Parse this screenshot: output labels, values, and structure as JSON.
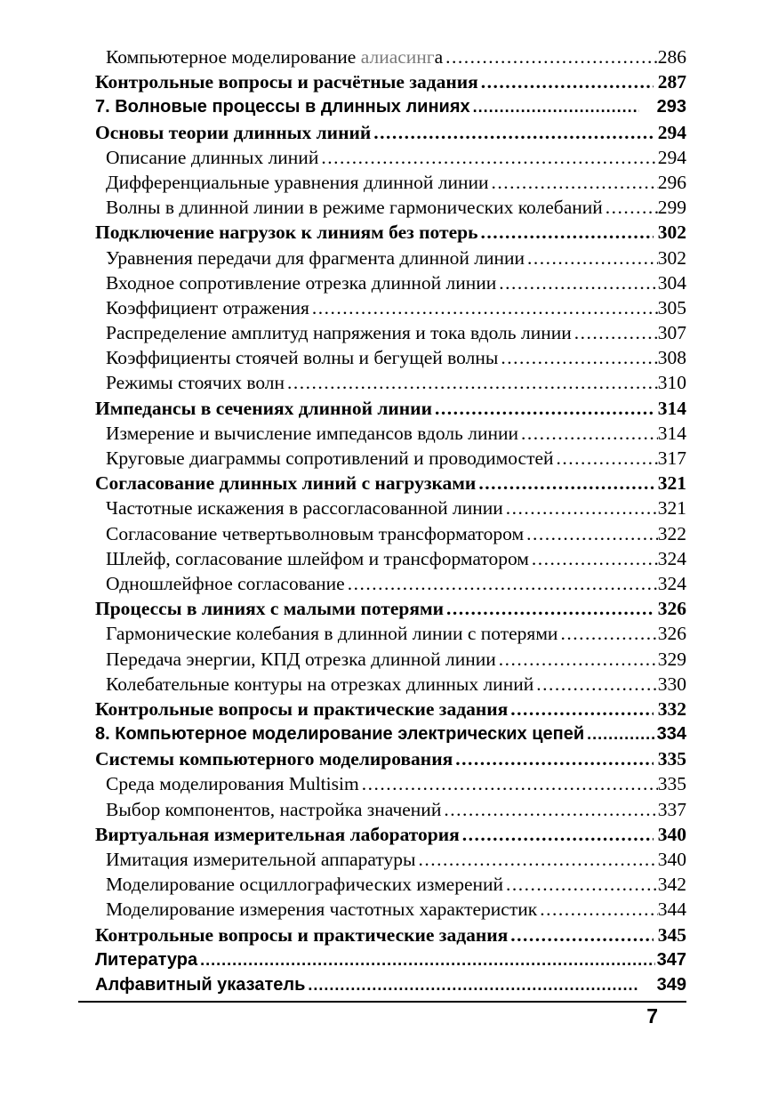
{
  "colors": {
    "text": "#000000",
    "muted_text": "#7b7b7b",
    "background": "#ffffff",
    "rule": "#000000"
  },
  "footer": {
    "page_number": "7"
  },
  "toc": {
    "entries": [
      {
        "style": "sub",
        "text": "Компьютерное моделирование ",
        "gray": "алиасинг",
        "post": "а",
        "page": "286"
      },
      {
        "style": "section",
        "text": "Контрольные вопросы и расчётные задания",
        "page": "287"
      },
      {
        "style": "chapter",
        "text": "7. Волновые процессы в длинных линиях",
        "page": "293",
        "gap": 20
      },
      {
        "style": "section",
        "text": "Основы теории длинных линий",
        "page": "294"
      },
      {
        "style": "sub",
        "text": "Описание длинных линий",
        "page": "294"
      },
      {
        "style": "sub",
        "text": "Дифференциальные уравнения длинной линии",
        "page": "296"
      },
      {
        "style": "sub",
        "text": "Волны в длинной линии в режиме гармонических колебаний",
        "page": "299"
      },
      {
        "style": "section",
        "text": "Подключение нагрузок к линиям без потерь",
        "page": "302"
      },
      {
        "style": "sub",
        "text": "Уравнения передачи для фрагмента длинной линии",
        "page": "302"
      },
      {
        "style": "sub",
        "text": "Входное сопротивление отрезка длинной линии",
        "page": "304"
      },
      {
        "style": "sub",
        "text": "Коэффициент отражения",
        "page": "305"
      },
      {
        "style": "sub",
        "text": "Распределение амплитуд напряжения и тока вдоль линии",
        "page": "307"
      },
      {
        "style": "sub",
        "text": "Коэффициенты стоячей волны и бегущей волны",
        "page": "308"
      },
      {
        "style": "sub",
        "text": "Режимы стоячих волн",
        "page": "310"
      },
      {
        "style": "section",
        "text": "Импедансы в сечениях длинной линии",
        "page": "314"
      },
      {
        "style": "sub",
        "text": "Измерение и вычисление импедансов вдоль линии",
        "page": "314"
      },
      {
        "style": "sub",
        "text": "Круговые диаграммы сопротивлений и проводимостей",
        "page": "317"
      },
      {
        "style": "section",
        "text": "Согласование длинных линий с нагрузками",
        "page": "321"
      },
      {
        "style": "sub",
        "text": "Частотные искажения в рассогласованной линии",
        "page": "321"
      },
      {
        "style": "sub",
        "text": "Согласование четвертьволновым трансформатором",
        "page": "322"
      },
      {
        "style": "sub",
        "text": "Шлейф, согласование шлейфом и трансформатором",
        "page": "324"
      },
      {
        "style": "sub",
        "text": "Одношлейфное согласование",
        "page": "324"
      },
      {
        "style": "section",
        "text": "Процессы в линиях с малыми потерями",
        "page": "326"
      },
      {
        "style": "sub",
        "text": "Гармонические колебания в длинной линии с потерями",
        "page": "326"
      },
      {
        "style": "sub",
        "text": "Передача энергии, КПД отрезка длинной линии",
        "page": "329"
      },
      {
        "style": "sub",
        "text": "Колебательные контуры на отрезках длинных линий",
        "page": "330"
      },
      {
        "style": "section",
        "text": "Контрольные вопросы и практические задания",
        "page": "332"
      },
      {
        "style": "chapter",
        "text": "8. Компьютерное моделирование электрических цепей",
        "page": "334",
        "gap": 2
      },
      {
        "style": "section",
        "text": "Системы компьютерного моделирования",
        "page": "335"
      },
      {
        "style": "sub",
        "text": "Среда моделирования Multisim",
        "page": "335"
      },
      {
        "style": "sub",
        "text": "Выбор компонентов, настройка значений",
        "page": "337"
      },
      {
        "style": "section",
        "text": "Виртуальная измерительная лаборатория",
        "page": "340"
      },
      {
        "style": "sub",
        "text": "Имитация измерительной аппаратуры",
        "page": "340"
      },
      {
        "style": "sub",
        "text": "Моделирование осциллографических измерений",
        "page": "342"
      },
      {
        "style": "sub",
        "text": "Моделирование измерения частотных характеристик",
        "page": "344"
      },
      {
        "style": "section",
        "text": "Контрольные вопросы и практические задания",
        "page": "345"
      },
      {
        "style": "chapter",
        "text": "Литература",
        "page": "347",
        "gap": 2
      },
      {
        "style": "chapter",
        "text": "Алфавитный указатель",
        "page": "349",
        "gap": 22
      }
    ]
  }
}
